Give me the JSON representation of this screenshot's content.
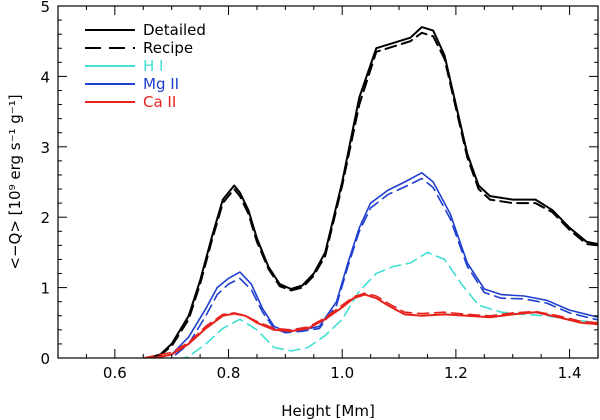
{
  "chart_data": {
    "type": "line",
    "xlabel": "Height [Mm]",
    "ylabel": "<−Q> [10⁹ erg s⁻¹ g⁻¹]",
    "xlim": [
      0.5,
      1.45
    ],
    "ylim": [
      0,
      5
    ],
    "xticks": [
      0.6,
      0.8,
      1.0,
      1.2,
      1.4
    ],
    "xtick_labels": [
      "0.6",
      "0.8",
      "1.0",
      "1.2",
      "1.4"
    ],
    "yticks": [
      0,
      1,
      2,
      3,
      4,
      5
    ],
    "ytick_labels": [
      "0",
      "1",
      "2",
      "3",
      "4",
      "5"
    ],
    "legend_position": "top-left",
    "legend": [
      {
        "label": "Detailed",
        "color": "#000000",
        "dash": "solid"
      },
      {
        "label": "Recipe",
        "color": "#000000",
        "dash": "dashed"
      },
      {
        "label": "H I",
        "color": "#40e0d0",
        "dash": "solid"
      },
      {
        "label": "Mg II",
        "color": "#1f3fcf",
        "dash": "solid"
      },
      {
        "label": "Ca II",
        "color": "#e8231c",
        "dash": "solid"
      }
    ],
    "series": [
      {
        "name": "Total detailed",
        "color": "#000000",
        "dash": "solid",
        "width": 2,
        "x": [
          0.5,
          0.55,
          0.6,
          0.65,
          0.68,
          0.7,
          0.73,
          0.75,
          0.77,
          0.79,
          0.81,
          0.82,
          0.835,
          0.85,
          0.87,
          0.89,
          0.91,
          0.93,
          0.95,
          0.97,
          1.0,
          1.03,
          1.06,
          1.1,
          1.12,
          1.14,
          1.16,
          1.18,
          1.2,
          1.22,
          1.24,
          1.26,
          1.3,
          1.34,
          1.37,
          1.4,
          1.43,
          1.45
        ],
        "y": [
          -0.02,
          -0.04,
          -0.05,
          -0.02,
          0.05,
          0.2,
          0.6,
          1.1,
          1.7,
          2.25,
          2.45,
          2.35,
          2.1,
          1.7,
          1.3,
          1.05,
          0.98,
          1.03,
          1.2,
          1.5,
          2.5,
          3.7,
          4.4,
          4.5,
          4.55,
          4.7,
          4.65,
          4.3,
          3.6,
          2.9,
          2.45,
          2.3,
          2.25,
          2.25,
          2.1,
          1.85,
          1.65,
          1.62
        ]
      },
      {
        "name": "Total recipe",
        "color": "#000000",
        "dash": "dashed",
        "width": 2,
        "x": [
          0.5,
          0.55,
          0.6,
          0.65,
          0.68,
          0.7,
          0.73,
          0.75,
          0.77,
          0.79,
          0.81,
          0.82,
          0.835,
          0.85,
          0.87,
          0.89,
          0.91,
          0.93,
          0.95,
          0.97,
          1.0,
          1.03,
          1.06,
          1.1,
          1.12,
          1.14,
          1.16,
          1.18,
          1.2,
          1.22,
          1.24,
          1.26,
          1.3,
          1.34,
          1.37,
          1.4,
          1.43,
          1.45
        ],
        "y": [
          -0.01,
          -0.03,
          -0.05,
          -0.02,
          0.04,
          0.17,
          0.55,
          1.05,
          1.65,
          2.2,
          2.4,
          2.3,
          2.05,
          1.65,
          1.27,
          1.02,
          0.96,
          1.0,
          1.17,
          1.45,
          2.45,
          3.6,
          4.35,
          4.45,
          4.5,
          4.62,
          4.57,
          4.25,
          3.55,
          2.85,
          2.4,
          2.25,
          2.2,
          2.2,
          2.07,
          1.82,
          1.62,
          1.6
        ]
      },
      {
        "name": "H I",
        "color": "#40e0d0",
        "dash": "dashed",
        "width": 1.6,
        "x": [
          0.5,
          0.55,
          0.6,
          0.65,
          0.7,
          0.73,
          0.76,
          0.79,
          0.82,
          0.85,
          0.88,
          0.91,
          0.94,
          0.97,
          1.0,
          1.03,
          1.06,
          1.09,
          1.12,
          1.15,
          1.18,
          1.21,
          1.24,
          1.28,
          1.32,
          1.36,
          1.4,
          1.45
        ],
        "y": [
          -0.06,
          -0.06,
          -0.06,
          -0.06,
          -0.05,
          0.02,
          0.2,
          0.42,
          0.55,
          0.4,
          0.15,
          0.1,
          0.15,
          0.32,
          0.55,
          0.95,
          1.2,
          1.3,
          1.35,
          1.5,
          1.4,
          1.05,
          0.75,
          0.65,
          0.62,
          0.6,
          0.55,
          0.5
        ]
      },
      {
        "name": "Mg II detailed",
        "color": "#1f3fcf",
        "dash": "solid",
        "width": 1.6,
        "x": [
          0.5,
          0.55,
          0.6,
          0.65,
          0.7,
          0.73,
          0.76,
          0.78,
          0.8,
          0.82,
          0.84,
          0.86,
          0.88,
          0.9,
          0.93,
          0.96,
          0.99,
          1.01,
          1.03,
          1.05,
          1.08,
          1.11,
          1.14,
          1.16,
          1.19,
          1.22,
          1.25,
          1.28,
          1.32,
          1.36,
          1.4,
          1.45
        ],
        "y": [
          -0.05,
          -0.05,
          -0.05,
          -0.04,
          0.05,
          0.3,
          0.7,
          1.0,
          1.13,
          1.22,
          1.05,
          0.7,
          0.45,
          0.38,
          0.4,
          0.45,
          0.8,
          1.35,
          1.85,
          2.2,
          2.38,
          2.5,
          2.63,
          2.5,
          2.05,
          1.35,
          0.98,
          0.9,
          0.88,
          0.82,
          0.68,
          0.58
        ]
      },
      {
        "name": "Mg II recipe",
        "color": "#1f3fcf",
        "dash": "dashed",
        "width": 1.6,
        "x": [
          0.5,
          0.55,
          0.6,
          0.65,
          0.7,
          0.73,
          0.76,
          0.78,
          0.8,
          0.82,
          0.84,
          0.86,
          0.88,
          0.9,
          0.93,
          0.96,
          0.99,
          1.01,
          1.03,
          1.05,
          1.08,
          1.11,
          1.14,
          1.16,
          1.19,
          1.22,
          1.25,
          1.28,
          1.32,
          1.36,
          1.4,
          1.45
        ],
        "y": [
          -0.05,
          -0.05,
          -0.05,
          -0.05,
          0.0,
          0.2,
          0.6,
          0.9,
          1.05,
          1.13,
          0.97,
          0.65,
          0.42,
          0.36,
          0.38,
          0.42,
          0.75,
          1.3,
          1.8,
          2.13,
          2.32,
          2.43,
          2.55,
          2.42,
          1.98,
          1.3,
          0.93,
          0.85,
          0.84,
          0.78,
          0.64,
          0.54
        ]
      },
      {
        "name": "Ca II detailed",
        "color": "#e8231c",
        "dash": "solid",
        "width": 2,
        "x": [
          0.5,
          0.55,
          0.6,
          0.65,
          0.7,
          0.73,
          0.76,
          0.79,
          0.81,
          0.83,
          0.85,
          0.88,
          0.91,
          0.94,
          0.97,
          1.0,
          1.02,
          1.04,
          1.06,
          1.08,
          1.11,
          1.14,
          1.18,
          1.22,
          1.26,
          1.3,
          1.34,
          1.38,
          1.42,
          1.45
        ],
        "y": [
          -0.03,
          -0.04,
          -0.04,
          -0.03,
          0.05,
          0.2,
          0.42,
          0.6,
          0.63,
          0.6,
          0.5,
          0.4,
          0.38,
          0.42,
          0.55,
          0.72,
          0.85,
          0.9,
          0.85,
          0.75,
          0.62,
          0.6,
          0.62,
          0.6,
          0.58,
          0.62,
          0.65,
          0.58,
          0.5,
          0.48
        ]
      },
      {
        "name": "Ca II recipe",
        "color": "#e8231c",
        "dash": "dashed",
        "width": 1.6,
        "x": [
          0.5,
          0.55,
          0.6,
          0.65,
          0.7,
          0.73,
          0.76,
          0.79,
          0.81,
          0.83,
          0.85,
          0.88,
          0.91,
          0.94,
          0.97,
          1.0,
          1.02,
          1.04,
          1.06,
          1.08,
          1.11,
          1.14,
          1.18,
          1.22,
          1.26,
          1.3,
          1.34,
          1.38,
          1.42,
          1.45
        ],
        "y": [
          -0.02,
          -0.02,
          -0.02,
          0.0,
          0.08,
          0.22,
          0.45,
          0.62,
          0.64,
          0.6,
          0.52,
          0.42,
          0.4,
          0.44,
          0.57,
          0.75,
          0.87,
          0.92,
          0.88,
          0.78,
          0.65,
          0.63,
          0.65,
          0.62,
          0.6,
          0.64,
          0.66,
          0.6,
          0.52,
          0.5
        ]
      }
    ]
  }
}
